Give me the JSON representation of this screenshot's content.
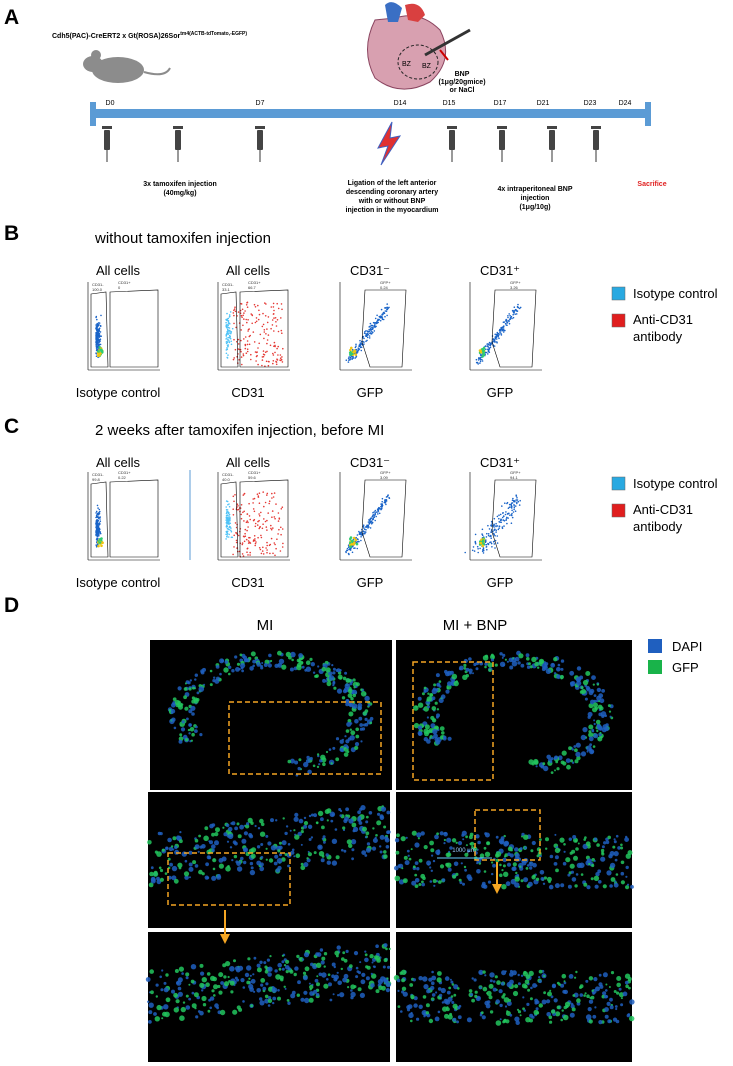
{
  "panel_a": {
    "label": "A",
    "strain": "Cdh5(PAC)-CreERT2 x Gt(ROSA)26Sor",
    "strain_sup": "tm4(ACTB-tdTomato,-EGFP)",
    "heart_labels": [
      "BZ",
      "BZ"
    ],
    "bnp_note": [
      "BNP",
      "(1μg/20gmice)",
      "or NaCl"
    ],
    "days": [
      "D0",
      "D7",
      "D14",
      "D15",
      "D17",
      "D21",
      "D23",
      "D24"
    ],
    "tamoxifen": [
      "3x tamoxifen injection",
      "(40mg/kg)"
    ],
    "ligation": [
      "Ligation of the left anterior",
      "descending coronary artery",
      "with or without BNP",
      "injection in the myocardium"
    ],
    "ip_bnp": [
      "4x intraperitoneal BNP",
      "injection",
      "(1μg/10g)"
    ],
    "sacrifice": "Sacrifice"
  },
  "panel_b": {
    "label": "B",
    "title": "without tamoxifen injection",
    "plot_titles": [
      "All cells",
      "All cells",
      "CD31⁻",
      "CD31⁺"
    ],
    "plot_labels": [
      "Isotype control",
      "CD31",
      "GFP",
      "GFP"
    ],
    "gates": [
      [
        "CD31-",
        "100.0",
        "CD31+",
        "0"
      ],
      [
        "CD31-",
        "33.1",
        "CD31+",
        "66.7"
      ],
      [
        "GFP+",
        "0.24"
      ],
      [
        "GFP+",
        "3.26"
      ]
    ],
    "legend": [
      "Isotype control",
      "Anti-CD31",
      "antibody"
    ]
  },
  "panel_c": {
    "label": "C",
    "title": "2 weeks after tamoxifen injection, before MI",
    "plot_titles": [
      "All cells",
      "All cells",
      "CD31⁻",
      "CD31⁺"
    ],
    "plot_labels": [
      "Isotype control",
      "CD31",
      "GFP",
      "GFP"
    ],
    "gates": [
      [
        "CD31-",
        "99.8",
        "CD31+",
        "0.22"
      ],
      [
        "CD31-",
        "40.0",
        "CD31+",
        "59.6"
      ],
      [
        "GFP+",
        "3.09"
      ],
      [
        "GFP+",
        "94.1"
      ]
    ],
    "legend": [
      "Isotype control",
      "Anti-CD31",
      "antibody"
    ]
  },
  "panel_d": {
    "label": "D",
    "columns": [
      "MI",
      "MI + BNP"
    ],
    "legend": [
      "DAPI",
      "GFP"
    ],
    "scale_bar": "1000 μm"
  }
}
